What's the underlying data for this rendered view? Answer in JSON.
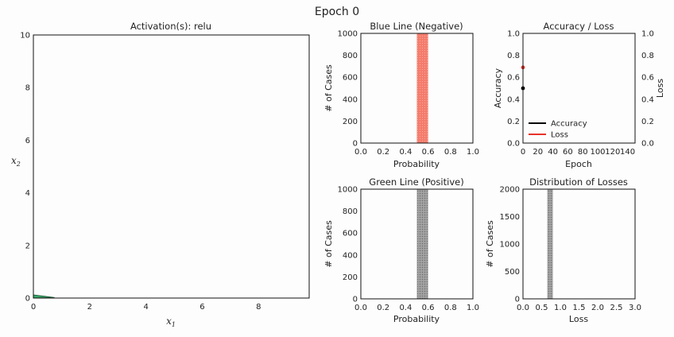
{
  "figure": {
    "suptitle": "Epoch 0"
  },
  "colors": {
    "negative_hist": "#f08070",
    "positive_hist": "#8f8f8f",
    "accuracy": "#000000",
    "loss": "#e8322b",
    "boundary_fill": "#3aaa6a"
  },
  "chart_data": [
    {
      "id": "decision",
      "type": "scatter",
      "title": "Activation(s): relu",
      "xlabel": "x",
      "xlabel_sub": "1",
      "ylabel": "x",
      "ylabel_sub": "2",
      "xlim": [
        0,
        9.8
      ],
      "ylim": [
        0,
        10
      ],
      "xticks": [
        0,
        2,
        4,
        6,
        8
      ],
      "yticks": [
        0,
        2,
        4,
        6,
        8,
        10
      ],
      "region_points": [
        [
          0,
          0
        ],
        [
          0.75,
          0.02
        ],
        [
          0,
          0.12
        ]
      ],
      "grid": false
    },
    {
      "id": "neg_hist",
      "type": "bar",
      "title": "Blue Line (Negative)",
      "xlabel": "Probability",
      "ylabel": "# of Cases",
      "xlim": [
        0,
        1
      ],
      "ylim": [
        0,
        1000
      ],
      "xticks": [
        0.0,
        0.2,
        0.4,
        0.6,
        0.8,
        1.0
      ],
      "xticklabels": [
        "0.0",
        "0.2",
        "0.4",
        "0.6",
        "0.8",
        "1.0"
      ],
      "yticks": [
        0,
        200,
        400,
        600,
        800,
        1000
      ],
      "bins": [
        {
          "x0": 0.5,
          "x1": 0.6,
          "count": 1000
        }
      ],
      "color_key": "negative_hist"
    },
    {
      "id": "acc_loss",
      "type": "line",
      "title": "Accuracy / Loss",
      "xlabel": "Epoch",
      "ylabel": "Accuracy",
      "ylabel_right": "Loss",
      "xlim": [
        0,
        150
      ],
      "ylim": [
        0,
        1
      ],
      "ylim_right": [
        0,
        1
      ],
      "xticks": [
        0,
        20,
        40,
        60,
        80,
        100,
        120,
        140
      ],
      "yticks": [
        0.0,
        0.2,
        0.4,
        0.6,
        0.8,
        1.0
      ],
      "yticklabels": [
        "0.0",
        "0.2",
        "0.4",
        "0.6",
        "0.8",
        "1.0"
      ],
      "series": [
        {
          "name": "Accuracy",
          "x": [
            0
          ],
          "y": [
            0.5
          ],
          "color_key": "accuracy"
        },
        {
          "name": "Loss",
          "x": [
            0
          ],
          "y": [
            0.69
          ],
          "color_key": "loss"
        }
      ],
      "legend": "lower-left"
    },
    {
      "id": "pos_hist",
      "type": "bar",
      "title": "Green Line (Positive)",
      "xlabel": "Probability",
      "ylabel": "# of Cases",
      "xlim": [
        0,
        1
      ],
      "ylim": [
        0,
        1000
      ],
      "xticks": [
        0.0,
        0.2,
        0.4,
        0.6,
        0.8,
        1.0
      ],
      "xticklabels": [
        "0.0",
        "0.2",
        "0.4",
        "0.6",
        "0.8",
        "1.0"
      ],
      "yticks": [
        0,
        200,
        400,
        600,
        800,
        1000
      ],
      "bins": [
        {
          "x0": 0.5,
          "x1": 0.6,
          "count": 1000
        }
      ],
      "color_key": "positive_hist"
    },
    {
      "id": "loss_hist",
      "type": "bar",
      "title": "Distribution of Losses",
      "xlabel": "Loss",
      "ylabel": "# of Cases",
      "xlim": [
        0,
        3
      ],
      "ylim": [
        0,
        2000
      ],
      "xticks": [
        0.0,
        0.5,
        1.0,
        1.5,
        2.0,
        2.5,
        3.0
      ],
      "xticklabels": [
        "0.0",
        "0.5",
        "1.0",
        "1.5",
        "2.0",
        "2.5",
        "3.0"
      ],
      "yticks": [
        0,
        500,
        1000,
        1500,
        2000
      ],
      "bins": [
        {
          "x0": 0.65,
          "x1": 0.8,
          "count": 2000
        }
      ],
      "color_key": "positive_hist"
    }
  ]
}
